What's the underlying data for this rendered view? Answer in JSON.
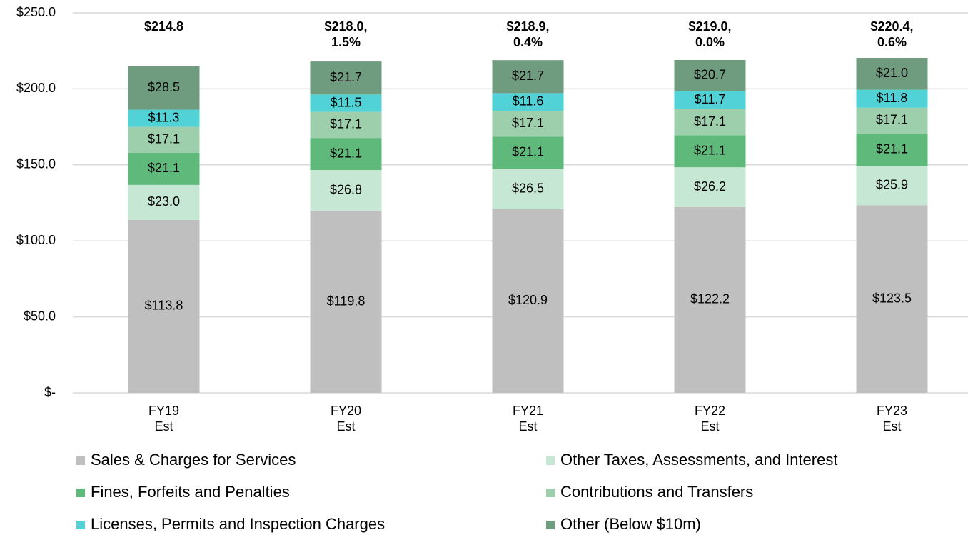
{
  "chart_data": {
    "type": "stacked_bar",
    "categories": [
      [
        "FY19",
        "Est"
      ],
      [
        "FY20",
        "Est"
      ],
      [
        "FY21",
        "Est"
      ],
      [
        "FY22",
        "Est"
      ],
      [
        "FY23",
        "Est"
      ]
    ],
    "series": [
      {
        "name": "Sales & Charges for Services",
        "color": "#bfbfbf",
        "values": [
          113.8,
          119.8,
          120.9,
          122.2,
          123.5
        ],
        "value_labels": [
          "$113.8",
          "$119.8",
          "$120.9",
          "$122.2",
          "$123.5"
        ]
      },
      {
        "name": "Other Taxes, Assessments, and Interest",
        "color": "#c6e7d3",
        "values": [
          23.0,
          26.8,
          26.5,
          26.2,
          25.9
        ],
        "value_labels": [
          "$23.0",
          "$26.8",
          "$26.5",
          "$26.2",
          "$25.9"
        ]
      },
      {
        "name": "Fines, Forfeits and Penalties",
        "color": "#5fb97b",
        "values": [
          21.1,
          21.1,
          21.1,
          21.1,
          21.1
        ],
        "value_labels": [
          "$21.1",
          "$21.1",
          "$21.1",
          "$21.1",
          "$21.1"
        ]
      },
      {
        "name": "Contributions and Transfers",
        "color": "#9dcfac",
        "values": [
          17.1,
          17.1,
          17.1,
          17.1,
          17.1
        ],
        "value_labels": [
          "$17.1",
          "$17.1",
          "$17.1",
          "$17.1",
          "$17.1"
        ]
      },
      {
        "name": "Licenses, Permits and Inspection Charges",
        "color": "#50d2d6",
        "values": [
          11.3,
          11.5,
          11.6,
          11.7,
          11.8
        ],
        "value_labels": [
          "$11.3",
          "$11.5",
          "$11.6",
          "$11.7",
          "$11.8"
        ]
      },
      {
        "name": "Other (Below $10m)",
        "color": "#6f9b7f",
        "values": [
          28.5,
          21.7,
          21.7,
          20.7,
          21.0
        ],
        "value_labels": [
          "$28.5",
          "$21.7",
          "$21.7",
          "$20.7",
          "$21.0"
        ]
      }
    ],
    "total_labels": [
      [
        "$214.8"
      ],
      [
        "$218.0,",
        "1.5%"
      ],
      [
        "$218.9,",
        "0.4%"
      ],
      [
        "$219.0,",
        "0.0%"
      ],
      [
        "$220.4,",
        "0.6%"
      ]
    ],
    "ylim": [
      0,
      250
    ],
    "yticks": [
      {
        "value": 0,
        "label": "$-"
      },
      {
        "value": 50,
        "label": "$50.0"
      },
      {
        "value": 100,
        "label": "$100.0"
      },
      {
        "value": 150,
        "label": "$150.0"
      },
      {
        "value": 200,
        "label": "$200.0"
      },
      {
        "value": 250,
        "label": "$250.0"
      }
    ],
    "grid": true,
    "legend": "bottom"
  }
}
